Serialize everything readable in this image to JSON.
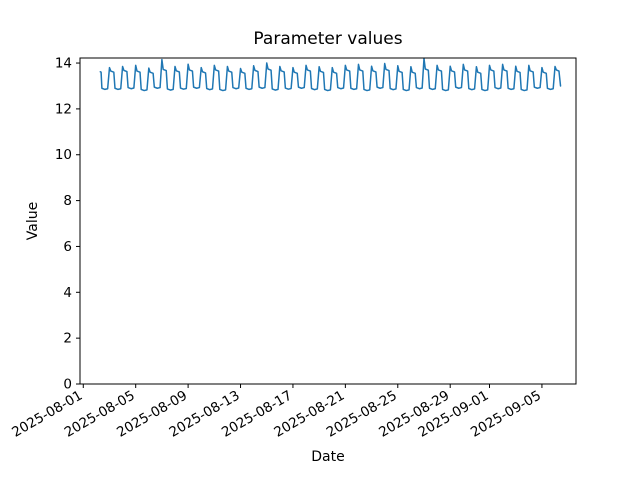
{
  "figure": {
    "background": "#ffffff"
  },
  "chart_data": {
    "type": "line",
    "title": "Parameter values",
    "xlabel": "Date",
    "ylabel": "Value",
    "grid": false,
    "legend": null,
    "line_color": "#1f77b4",
    "line_width": 1.5,
    "x_unit": "days since 2025-08-01",
    "xlim": [
      -0.25,
      37.6
    ],
    "ylim": [
      0,
      14.22
    ],
    "yticks": [
      {
        "value": 0,
        "label": "0"
      },
      {
        "value": 2,
        "label": "2"
      },
      {
        "value": 4,
        "label": "4"
      },
      {
        "value": 6,
        "label": "6"
      },
      {
        "value": 8,
        "label": "8"
      },
      {
        "value": 10,
        "label": "10"
      },
      {
        "value": 12,
        "label": "12"
      },
      {
        "value": 14,
        "label": "14"
      }
    ],
    "xticks": [
      {
        "day": 0,
        "label": "2025-08-01"
      },
      {
        "day": 4,
        "label": "2025-08-05"
      },
      {
        "day": 8,
        "label": "2025-08-09"
      },
      {
        "day": 12,
        "label": "2025-08-13"
      },
      {
        "day": 16,
        "label": "2025-08-17"
      },
      {
        "day": 20,
        "label": "2025-08-21"
      },
      {
        "day": 24,
        "label": "2025-08-25"
      },
      {
        "day": 28,
        "label": "2025-08-29"
      },
      {
        "day": 31,
        "label": "2025-09-01"
      },
      {
        "day": 35,
        "label": "2025-09-05"
      }
    ],
    "xtick_rotation_deg": 30,
    "series": [
      {
        "points": [
          [
            1.3,
            13.62
          ],
          [
            1.36,
            13.6
          ],
          [
            1.42,
            12.9
          ],
          [
            1.65,
            12.85
          ],
          [
            1.86,
            12.88
          ],
          [
            2,
            13.8
          ],
          [
            2.1,
            13.65
          ],
          [
            2.33,
            13.6
          ],
          [
            2.42,
            12.9
          ],
          [
            2.65,
            12.85
          ],
          [
            2.86,
            12.88
          ],
          [
            3,
            13.85
          ],
          [
            3.1,
            13.68
          ],
          [
            3.33,
            13.63
          ],
          [
            3.42,
            12.93
          ],
          [
            3.65,
            12.88
          ],
          [
            3.86,
            12.91
          ],
          [
            4,
            13.9
          ],
          [
            4.1,
            13.65
          ],
          [
            4.33,
            13.6
          ],
          [
            4.42,
            12.85
          ],
          [
            4.65,
            12.8
          ],
          [
            4.86,
            12.83
          ],
          [
            5,
            13.78
          ],
          [
            5.1,
            13.6
          ],
          [
            5.33,
            13.55
          ],
          [
            5.42,
            12.95
          ],
          [
            5.65,
            12.9
          ],
          [
            5.86,
            12.93
          ],
          [
            6,
            14.15
          ],
          [
            6.1,
            13.72
          ],
          [
            6.33,
            13.67
          ],
          [
            6.42,
            12.87
          ],
          [
            6.65,
            12.82
          ],
          [
            6.86,
            12.85
          ],
          [
            7,
            13.85
          ],
          [
            7.1,
            13.66
          ],
          [
            7.33,
            13.61
          ],
          [
            7.42,
            12.91
          ],
          [
            7.65,
            12.86
          ],
          [
            7.86,
            12.89
          ],
          [
            8,
            13.95
          ],
          [
            8.1,
            13.7
          ],
          [
            8.33,
            13.65
          ],
          [
            8.42,
            12.95
          ],
          [
            8.65,
            12.9
          ],
          [
            8.86,
            12.93
          ],
          [
            9,
            13.8
          ],
          [
            9.1,
            13.62
          ],
          [
            9.33,
            13.57
          ],
          [
            9.42,
            12.89
          ],
          [
            9.65,
            12.84
          ],
          [
            9.86,
            12.87
          ],
          [
            10,
            13.9
          ],
          [
            10.1,
            13.7
          ],
          [
            10.33,
            13.65
          ],
          [
            10.42,
            12.85
          ],
          [
            10.65,
            12.8
          ],
          [
            10.86,
            12.83
          ],
          [
            11,
            13.85
          ],
          [
            11.1,
            13.65
          ],
          [
            11.33,
            13.6
          ],
          [
            11.42,
            12.93
          ],
          [
            11.65,
            12.88
          ],
          [
            11.86,
            12.91
          ],
          [
            12,
            13.76
          ],
          [
            12.1,
            13.6
          ],
          [
            12.33,
            13.55
          ],
          [
            12.42,
            12.9
          ],
          [
            12.65,
            12.85
          ],
          [
            12.86,
            12.88
          ],
          [
            13,
            13.88
          ],
          [
            13.1,
            13.68
          ],
          [
            13.33,
            13.63
          ],
          [
            13.42,
            12.95
          ],
          [
            13.65,
            12.9
          ],
          [
            13.86,
            12.93
          ],
          [
            14,
            14.0
          ],
          [
            14.1,
            13.74
          ],
          [
            14.33,
            13.69
          ],
          [
            14.42,
            12.87
          ],
          [
            14.65,
            12.82
          ],
          [
            14.86,
            12.85
          ],
          [
            15,
            13.85
          ],
          [
            15.1,
            13.66
          ],
          [
            15.33,
            13.61
          ],
          [
            15.42,
            12.91
          ],
          [
            15.65,
            12.86
          ],
          [
            15.86,
            12.89
          ],
          [
            16,
            13.8
          ],
          [
            16.1,
            13.6
          ],
          [
            16.33,
            13.55
          ],
          [
            16.42,
            12.95
          ],
          [
            16.65,
            12.9
          ],
          [
            16.86,
            12.93
          ],
          [
            17,
            13.9
          ],
          [
            17.1,
            13.7
          ],
          [
            17.33,
            13.65
          ],
          [
            17.42,
            12.89
          ],
          [
            17.65,
            12.84
          ],
          [
            17.86,
            12.87
          ],
          [
            18,
            13.84
          ],
          [
            18.1,
            13.64
          ],
          [
            18.33,
            13.59
          ],
          [
            18.42,
            12.85
          ],
          [
            18.65,
            12.8
          ],
          [
            18.86,
            12.83
          ],
          [
            19,
            13.8
          ],
          [
            19.1,
            13.6
          ],
          [
            19.33,
            13.55
          ],
          [
            19.42,
            12.93
          ],
          [
            19.65,
            12.88
          ],
          [
            19.86,
            12.91
          ],
          [
            20,
            13.9
          ],
          [
            20.1,
            13.7
          ],
          [
            20.33,
            13.65
          ],
          [
            20.42,
            12.9
          ],
          [
            20.65,
            12.85
          ],
          [
            20.86,
            12.88
          ],
          [
            21,
            13.94
          ],
          [
            21.1,
            13.7
          ],
          [
            21.33,
            13.65
          ],
          [
            21.42,
            12.85
          ],
          [
            21.65,
            12.8
          ],
          [
            21.86,
            12.83
          ],
          [
            22,
            13.86
          ],
          [
            22.1,
            13.66
          ],
          [
            22.33,
            13.61
          ],
          [
            22.42,
            12.95
          ],
          [
            22.65,
            12.9
          ],
          [
            22.86,
            12.93
          ],
          [
            23,
            13.98
          ],
          [
            23.1,
            13.72
          ],
          [
            23.33,
            13.67
          ],
          [
            23.42,
            12.89
          ],
          [
            23.65,
            12.84
          ],
          [
            23.86,
            12.87
          ],
          [
            24,
            13.88
          ],
          [
            24.1,
            13.64
          ],
          [
            24.33,
            13.59
          ],
          [
            24.42,
            12.85
          ],
          [
            24.65,
            12.8
          ],
          [
            24.86,
            12.83
          ],
          [
            25,
            13.84
          ],
          [
            25.1,
            13.6
          ],
          [
            25.33,
            13.55
          ],
          [
            25.42,
            12.93
          ],
          [
            25.65,
            12.88
          ],
          [
            25.86,
            12.91
          ],
          [
            26,
            14.2
          ],
          [
            26.1,
            13.74
          ],
          [
            26.33,
            13.69
          ],
          [
            26.42,
            12.9
          ],
          [
            26.65,
            12.85
          ],
          [
            26.86,
            12.88
          ],
          [
            27,
            13.9
          ],
          [
            27.1,
            13.7
          ],
          [
            27.33,
            13.65
          ],
          [
            27.42,
            12.85
          ],
          [
            27.65,
            12.8
          ],
          [
            27.86,
            12.83
          ],
          [
            28,
            13.86
          ],
          [
            28.1,
            13.66
          ],
          [
            28.33,
            13.61
          ],
          [
            28.42,
            12.95
          ],
          [
            28.65,
            12.9
          ],
          [
            28.86,
            12.93
          ],
          [
            29,
            13.94
          ],
          [
            29.1,
            13.7
          ],
          [
            29.33,
            13.65
          ],
          [
            29.42,
            12.89
          ],
          [
            29.65,
            12.84
          ],
          [
            29.86,
            12.87
          ],
          [
            30,
            13.84
          ],
          [
            30.1,
            13.6
          ],
          [
            30.33,
            13.55
          ],
          [
            30.42,
            12.85
          ],
          [
            30.65,
            12.8
          ],
          [
            30.86,
            12.83
          ],
          [
            31,
            13.9
          ],
          [
            31.1,
            13.7
          ],
          [
            31.33,
            13.65
          ],
          [
            31.42,
            12.93
          ],
          [
            31.65,
            12.88
          ],
          [
            31.86,
            12.91
          ],
          [
            32,
            13.94
          ],
          [
            32.1,
            13.7
          ],
          [
            32.33,
            13.65
          ],
          [
            32.42,
            12.9
          ],
          [
            32.65,
            12.85
          ],
          [
            32.86,
            12.88
          ],
          [
            33,
            13.86
          ],
          [
            33.1,
            13.64
          ],
          [
            33.33,
            13.59
          ],
          [
            33.42,
            12.85
          ],
          [
            33.65,
            12.8
          ],
          [
            33.86,
            12.83
          ],
          [
            34,
            13.9
          ],
          [
            34.1,
            13.66
          ],
          [
            34.33,
            13.61
          ],
          [
            34.42,
            12.95
          ],
          [
            34.65,
            12.9
          ],
          [
            34.86,
            12.93
          ],
          [
            35,
            13.8
          ],
          [
            35.1,
            13.6
          ],
          [
            35.33,
            13.55
          ],
          [
            35.42,
            12.9
          ],
          [
            35.65,
            12.85
          ],
          [
            35.86,
            12.88
          ],
          [
            36,
            13.85
          ],
          [
            36.1,
            13.7
          ],
          [
            36.3,
            13.65
          ],
          [
            36.42,
            13.0
          ]
        ]
      }
    ]
  }
}
